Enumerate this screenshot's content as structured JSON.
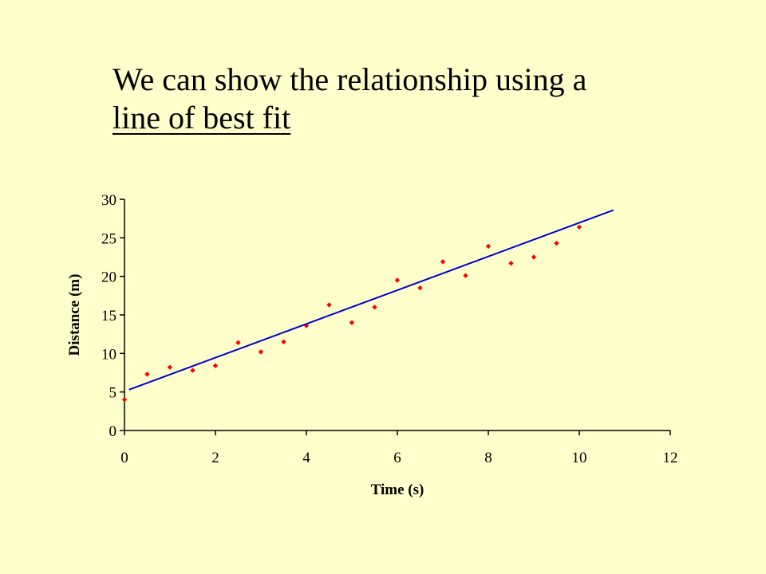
{
  "slide": {
    "title_line1": "We can show the relationship using a",
    "title_line2": "line of best fit",
    "background_color": "#ffffcc"
  },
  "chart_data": {
    "type": "scatter",
    "title": "",
    "xlabel": "Time (s)",
    "ylabel": "Distance (m)",
    "xlim": [
      0,
      12
    ],
    "ylim": [
      0,
      30
    ],
    "x_ticks": [
      0,
      2,
      4,
      6,
      8,
      10,
      12
    ],
    "y_ticks": [
      0,
      5,
      10,
      15,
      20,
      25,
      30
    ],
    "grid": false,
    "series": [
      {
        "marker_color": "#ff0000",
        "points": [
          [
            0,
            4.0
          ],
          [
            0.5,
            7.3
          ],
          [
            1,
            8.2
          ],
          [
            1.5,
            7.8
          ],
          [
            2,
            8.4
          ],
          [
            2.5,
            11.4
          ],
          [
            3,
            10.2
          ],
          [
            3.5,
            11.5
          ],
          [
            4,
            13.6
          ],
          [
            4.5,
            16.3
          ],
          [
            5,
            14.0
          ],
          [
            5.5,
            16.0
          ],
          [
            6,
            19.5
          ],
          [
            6.5,
            18.5
          ],
          [
            7,
            21.9
          ],
          [
            7.5,
            20.1
          ],
          [
            8,
            23.9
          ],
          [
            8.5,
            21.7
          ],
          [
            9,
            22.5
          ],
          [
            9.5,
            24.3
          ],
          [
            10,
            26.4
          ]
        ]
      }
    ],
    "best_fit_line": {
      "color": "#0000cc",
      "from": [
        0.1,
        5.3
      ],
      "to": [
        10.75,
        28.6
      ]
    }
  }
}
